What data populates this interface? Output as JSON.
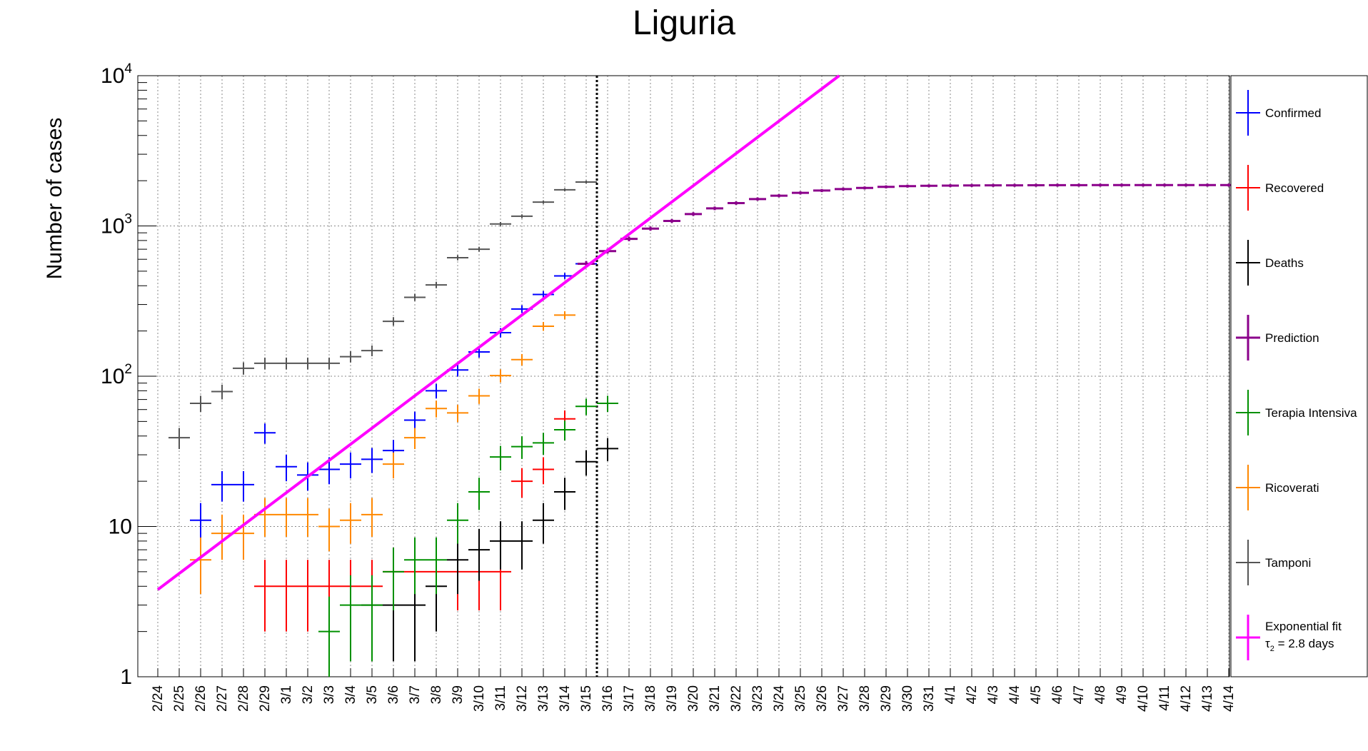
{
  "chart_data": {
    "type": "scatter",
    "title": "Liguria",
    "xlabel": "",
    "ylabel": "Number of cases",
    "yscale": "log",
    "ylim": [
      1,
      10000
    ],
    "ytick_labels": [
      "1",
      "10",
      "10^2",
      "10^3",
      "10^4"
    ],
    "grid": true,
    "legend_position": "right",
    "categories": [
      "2/24",
      "2/25",
      "2/26",
      "2/27",
      "2/28",
      "2/29",
      "3/1",
      "3/2",
      "3/3",
      "3/4",
      "3/5",
      "3/6",
      "3/7",
      "3/8",
      "3/9",
      "3/10",
      "3/11",
      "3/12",
      "3/13",
      "3/14",
      "3/15",
      "3/16",
      "3/17",
      "3/18",
      "3/19",
      "3/20",
      "3/21",
      "3/22",
      "3/23",
      "3/24",
      "3/25",
      "3/26",
      "3/27",
      "3/28",
      "3/29",
      "3/30",
      "3/31",
      "4/1",
      "4/2",
      "4/3",
      "4/4",
      "4/5",
      "4/6",
      "4/7",
      "4/8",
      "4/9",
      "4/10",
      "4/11",
      "4/12",
      "4/13",
      "4/14"
    ],
    "marker_date": "3/15",
    "series": [
      {
        "name": "Confirmed",
        "color": "#0000ff",
        "first_index": 2,
        "values": [
          11,
          19,
          19,
          42,
          25,
          22,
          24,
          26,
          28,
          32,
          51,
          80,
          110,
          145,
          195,
          280,
          350,
          465,
          560
        ]
      },
      {
        "name": "Recovered",
        "color": "#ff0000",
        "first_index": 5,
        "values": [
          4,
          4,
          4,
          4,
          4,
          4,
          5,
          5,
          5,
          5,
          5,
          5,
          20,
          24,
          52
        ]
      },
      {
        "name": "Deaths",
        "color": "#000000",
        "first_index": 10,
        "values": [
          3,
          3,
          3,
          4,
          6,
          7,
          8,
          8,
          11,
          17,
          27,
          33
        ]
      },
      {
        "name": "Prediction",
        "color": "#8b008b",
        "first_index": 20,
        "values": [
          560,
          680,
          820,
          960,
          1080,
          1200,
          1310,
          1420,
          1510,
          1590,
          1660,
          1720,
          1760,
          1790,
          1820,
          1840,
          1850,
          1855,
          1860,
          1862,
          1864,
          1866,
          1868,
          1869,
          1870,
          1870,
          1870,
          1870,
          1870,
          1870,
          1870
        ]
      },
      {
        "name": "Terapia Intensiva",
        "color": "#009000",
        "first_index": 8,
        "values": [
          2,
          3,
          3,
          5,
          6,
          6,
          11,
          17,
          29,
          34,
          36,
          44,
          63,
          66
        ]
      },
      {
        "name": "Ricoverati",
        "color": "#ff8800",
        "first_index": 2,
        "values": [
          6,
          9,
          9,
          12,
          12,
          12,
          10,
          11,
          12,
          26,
          39,
          61,
          57,
          74,
          101,
          129,
          215,
          255
        ]
      },
      {
        "name": "Tamponi",
        "color": "#555555",
        "first_index": 1,
        "values": [
          39,
          66,
          79,
          113,
          122,
          122,
          122,
          122,
          135,
          148,
          232,
          335,
          405,
          615,
          700,
          1030,
          1160,
          1440,
          1740,
          1960
        ]
      }
    ],
    "fit": {
      "name": "Exponential fit",
      "label": "τ₂ = 2.8 days",
      "label_main": "τ",
      "label_sub": "2",
      "label_rest": " = 2.8 days",
      "color": "#ff00ff",
      "doubling_days": 2.8,
      "start_index": 0,
      "start_value": 3.8
    }
  }
}
